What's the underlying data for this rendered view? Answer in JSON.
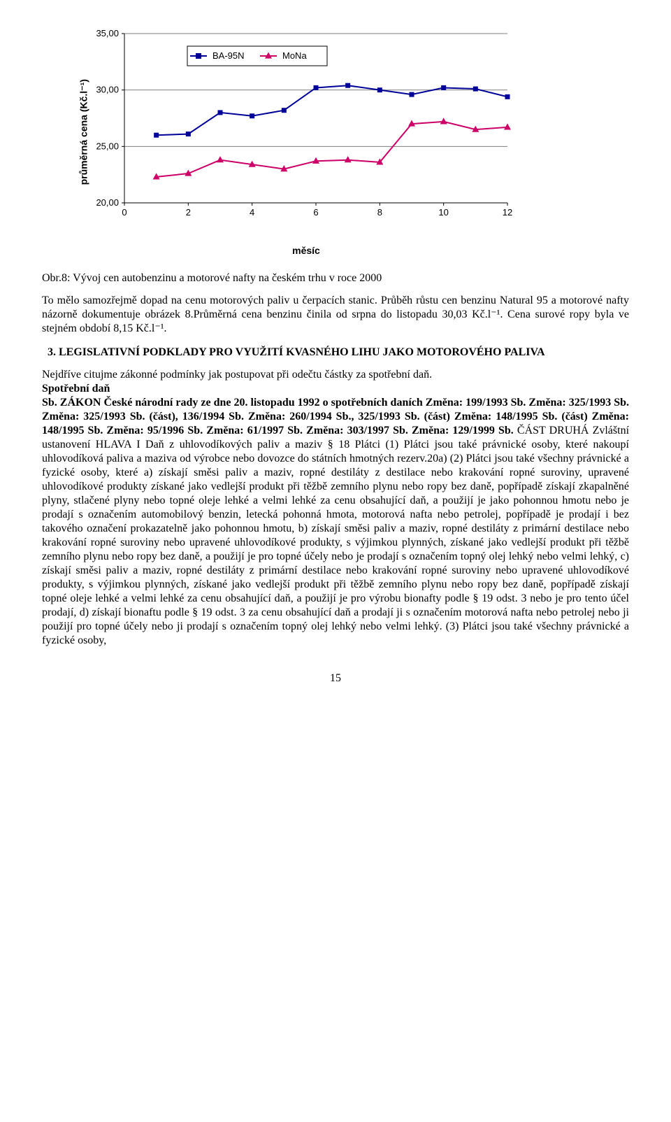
{
  "chart": {
    "type": "line",
    "y_label": "průměrná cena (Kč.l⁻¹)",
    "x_label": "měsíc",
    "y_lim": [
      20,
      35
    ],
    "y_ticks": [
      20,
      25,
      30,
      35
    ],
    "x_lim": [
      0,
      12
    ],
    "x_ticks": [
      0,
      2,
      4,
      6,
      8,
      10,
      12
    ],
    "grid_color": "#808080",
    "grid_width": 1,
    "background_color": "#ffffff",
    "axis_fontsize": 14,
    "tick_fontsize": 13,
    "legend": {
      "position": "top-inside",
      "border_color": "#000000",
      "items": [
        {
          "label": "BA-95N",
          "color": "#000099",
          "marker": "square"
        },
        {
          "label": "MoNa",
          "color": "#cc0066",
          "marker": "triangle"
        }
      ]
    },
    "series": [
      {
        "name": "BA-95N",
        "color": "#000099",
        "marker": "square",
        "marker_size": 7,
        "line_width": 2,
        "x": [
          1,
          2,
          3,
          4,
          5,
          6,
          7,
          8,
          9,
          10,
          11,
          12
        ],
        "y": [
          26.0,
          26.1,
          28.0,
          27.7,
          28.2,
          30.2,
          30.4,
          30.0,
          29.6,
          30.2,
          30.1,
          29.4
        ]
      },
      {
        "name": "MoNa",
        "color": "#cc0066",
        "marker": "triangle",
        "marker_size": 8,
        "line_width": 2,
        "x": [
          1,
          2,
          3,
          4,
          5,
          6,
          7,
          8,
          9,
          10,
          11,
          12
        ],
        "y": [
          22.3,
          22.6,
          23.8,
          23.4,
          23.0,
          23.7,
          23.8,
          23.6,
          27.0,
          27.2,
          26.5,
          26.7
        ]
      }
    ]
  },
  "caption": "Obr.8: Vývoj cen autobenzinu a motorové nafty na českém trhu v roce 2000",
  "para1": "To mělo samozřejmě dopad na cenu motorových paliv u čerpacích stanic. Průběh růstu cen benzinu Natural 95 a motorové nafty názorně dokumentuje obrázek 8.Průměrná cena benzinu činila od srpna do listopadu 30,03 Kč.l⁻¹. Cena surové ropy byla ve stejném období 8,15 Kč.l⁻¹.",
  "heading": "3. LEGISLATIVNÍ PODKLADY PRO VYUŽITÍ KVASNÉHO LIHU JAKO MOTOROVÉHO PALIVA",
  "para2": "Nejdříve citujme zákonné podmínky jak postupovat při odečtu částky za spotřební daň.",
  "para3_bold": "Spotřební daň",
  "para4_lead": "Sb. ZÁKON České národní rady ze dne 20. listopadu 1992 o spotřebních daních Změna: 199/1993 Sb. Změna: 325/1993 Sb. Změna: 325/1993 Sb. (část), 136/1994 Sb. Změna: 260/1994 Sb., 325/1993 Sb. (část) Změna: 148/1995 Sb. (část) Změna: 148/1995 Sb. Změna: 95/1996 Sb. Změna: 61/1997 Sb. Změna: 303/1997 Sb. Změna: 129/1999 Sb.",
  "para4_rest": "ČÁST DRUHÁ Zvláštní ustanovení HLAVA I Daň z uhlovodíkových paliv a maziv § 18 Plátci (1) Plátci jsou také právnické osoby, které nakoupí uhlovodíková paliva a maziva od výrobce nebo dovozce do státních hmotných rezerv.20a) (2) Plátci jsou také všechny právnické a fyzické osoby, které a) získají směsi paliv a maziv, ropné destiláty z destilace nebo krakování ropné suroviny, upravené uhlovodíkové produkty získané jako vedlejší produkt při těžbě zemního plynu nebo ropy bez daně, popřípadě získají zkapalněné plyny, stlačené plyny nebo topné oleje lehké a velmi lehké za cenu obsahující daň, a použijí je jako pohonnou hmotu nebo je prodají s označením automobilový benzin, letecká pohonná hmota, motorová nafta nebo petrolej, popřípadě je prodají i bez takového označení prokazatelně jako pohonnou hmotu, b) získají směsi paliv a maziv, ropné destiláty z primární destilace nebo krakování ropné suroviny nebo upravené uhlovodíkové produkty, s výjimkou plynných, získané jako vedlejší produkt při těžbě zemního plynu nebo ropy bez daně, a použijí je pro topné účely nebo je prodají s označením topný olej lehký nebo velmi lehký, c) získají směsi paliv a maziv, ropné destiláty z primární destilace nebo krakování ropné suroviny nebo upravené uhlovodíkové produkty, s výjimkou plynných, získané jako vedlejší produkt při těžbě zemního plynu nebo ropy bez daně, popřípadě získají topné oleje lehké a velmi lehké za cenu obsahující daň, a použijí je pro výrobu bionafty podle § 19 odst. 3 nebo je pro tento účel prodají, d) získají bionaftu podle § 19 odst. 3 za cenu obsahující daň a prodají ji s označením motorová nafta nebo petrolej nebo ji použijí pro topné účely nebo ji prodají s označením topný olej lehký nebo velmi lehký. (3) Plátci jsou také všechny právnické a fyzické osoby,",
  "page_number": "15"
}
